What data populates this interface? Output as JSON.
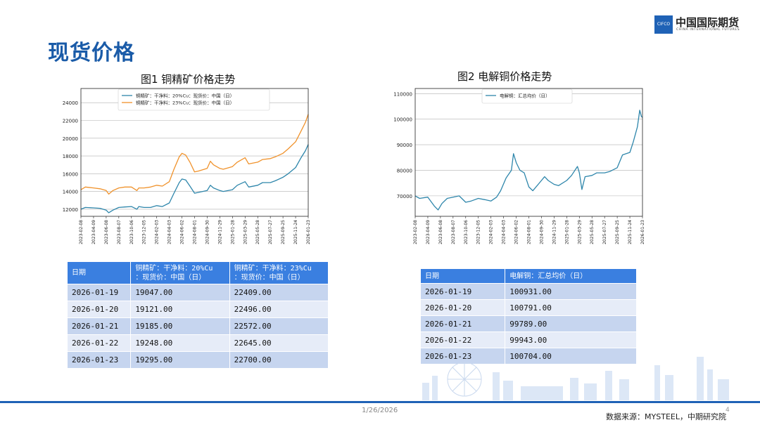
{
  "page": {
    "title": "现货价格",
    "date": "1/26/2026",
    "source": "数据来源：MYSTEEL，中期研究院",
    "page_number": "4"
  },
  "logo": {
    "mark": "CIFCO",
    "cn": "中国国际期货",
    "en": "CHINA INTERNATIONAL FUTURES"
  },
  "colors": {
    "accent": "#1f62b6",
    "table_header": "#3a7fe0",
    "series_blue": "#2e86ab",
    "series_orange": "#f0922b"
  },
  "chart_data": [
    {
      "type": "line",
      "title": "图1   铜精矿价格走势",
      "x_ticks": [
        "2023-02-08",
        "2023-04-09",
        "2023-06-08",
        "2023-08-07",
        "2023-10-06",
        "2023-12-05",
        "2024-02-03",
        "2024-04-03",
        "2024-06-02",
        "2024-08-01",
        "2024-09-30",
        "2024-11-29",
        "2025-01-28",
        "2025-03-29",
        "2025-05-28",
        "2025-07-27",
        "2025-09-25",
        "2025-11-24",
        "2026-01-23"
      ],
      "y_ticks": [
        12000,
        14000,
        16000,
        18000,
        20000,
        22000,
        24000
      ],
      "ylim": [
        11200,
        25600
      ],
      "grid": "horizontal",
      "legend_position": "top-center",
      "series": [
        {
          "name": "铜精矿：干净料：20%Cu：现货价：中国（日）",
          "color": "#2e86ab",
          "points": [
            [
              "2023-02-08",
              12000
            ],
            [
              "2023-03-01",
              12200
            ],
            [
              "2023-04-09",
              12150
            ],
            [
              "2023-05-10",
              12100
            ],
            [
              "2023-06-08",
              11900
            ],
            [
              "2023-06-20",
              11600
            ],
            [
              "2023-07-10",
              11900
            ],
            [
              "2023-08-07",
              12200
            ],
            [
              "2023-09-05",
              12250
            ],
            [
              "2023-10-06",
              12300
            ],
            [
              "2023-11-01",
              12000
            ],
            [
              "2023-11-10",
              12300
            ],
            [
              "2023-12-05",
              12200
            ],
            [
              "2024-01-05",
              12200
            ],
            [
              "2024-02-03",
              12400
            ],
            [
              "2024-03-01",
              12300
            ],
            [
              "2024-04-03",
              12700
            ],
            [
              "2024-04-25",
              13800
            ],
            [
              "2024-05-20",
              15000
            ],
            [
              "2024-06-02",
              15400
            ],
            [
              "2024-06-20",
              15300
            ],
            [
              "2024-07-10",
              14600
            ],
            [
              "2024-08-01",
              13800
            ],
            [
              "2024-08-20",
              13900
            ],
            [
              "2024-09-30",
              14100
            ],
            [
              "2024-10-15",
              14700
            ],
            [
              "2024-10-30",
              14400
            ],
            [
              "2024-11-29",
              14100
            ],
            [
              "2024-12-15",
              14000
            ],
            [
              "2025-01-28",
              14200
            ],
            [
              "2025-02-20",
              14700
            ],
            [
              "2025-03-29",
              15100
            ],
            [
              "2025-04-15",
              14500
            ],
            [
              "2025-05-28",
              14700
            ],
            [
              "2025-06-20",
              15000
            ],
            [
              "2025-07-27",
              15000
            ],
            [
              "2025-08-20",
              15200
            ],
            [
              "2025-09-25",
              15600
            ],
            [
              "2025-10-20",
              16000
            ],
            [
              "2025-11-24",
              16700
            ],
            [
              "2025-12-20",
              17800
            ],
            [
              "2026-01-10",
              18600
            ],
            [
              "2026-01-23",
              19295
            ]
          ]
        },
        {
          "name": "铜精矿：干净料：23%Cu：现货价：中国（日）",
          "color": "#f0922b",
          "points": [
            [
              "2023-02-08",
              14200
            ],
            [
              "2023-03-01",
              14500
            ],
            [
              "2023-04-09",
              14400
            ],
            [
              "2023-05-10",
              14300
            ],
            [
              "2023-06-08",
              14100
            ],
            [
              "2023-06-20",
              13700
            ],
            [
              "2023-07-10",
              14100
            ],
            [
              "2023-08-07",
              14400
            ],
            [
              "2023-09-05",
              14500
            ],
            [
              "2023-10-06",
              14500
            ],
            [
              "2023-11-01",
              14100
            ],
            [
              "2023-11-10",
              14400
            ],
            [
              "2023-12-05",
              14400
            ],
            [
              "2024-01-05",
              14500
            ],
            [
              "2024-02-03",
              14700
            ],
            [
              "2024-03-01",
              14600
            ],
            [
              "2024-04-03",
              15100
            ],
            [
              "2024-04-25",
              16500
            ],
            [
              "2024-05-20",
              17900
            ],
            [
              "2024-06-02",
              18300
            ],
            [
              "2024-06-20",
              18100
            ],
            [
              "2024-07-10",
              17300
            ],
            [
              "2024-08-01",
              16200
            ],
            [
              "2024-08-20",
              16300
            ],
            [
              "2024-09-30",
              16600
            ],
            [
              "2024-10-15",
              17400
            ],
            [
              "2024-10-30",
              17000
            ],
            [
              "2024-11-29",
              16600
            ],
            [
              "2024-12-15",
              16500
            ],
            [
              "2025-01-28",
              16800
            ],
            [
              "2025-02-20",
              17300
            ],
            [
              "2025-03-29",
              17800
            ],
            [
              "2025-04-15",
              17100
            ],
            [
              "2025-05-28",
              17300
            ],
            [
              "2025-06-20",
              17600
            ],
            [
              "2025-07-27",
              17700
            ],
            [
              "2025-08-20",
              17900
            ],
            [
              "2025-09-25",
              18300
            ],
            [
              "2025-10-20",
              18800
            ],
            [
              "2025-11-24",
              19600
            ],
            [
              "2025-12-20",
              20800
            ],
            [
              "2026-01-10",
              21800
            ],
            [
              "2026-01-23",
              22700
            ]
          ]
        }
      ]
    },
    {
      "type": "line",
      "title": "图2   电解铜价格走势",
      "x_ticks": [
        "2023-02-08",
        "2023-04-09",
        "2023-06-08",
        "2023-08-07",
        "2023-10-06",
        "2023-12-05",
        "2024-02-03",
        "2024-04-03",
        "2024-06-02",
        "2024-08-01",
        "2024-09-30",
        "2024-11-29",
        "2025-01-28",
        "2025-03-29",
        "2025-05-28",
        "2025-07-27",
        "2025-09-25",
        "2025-11-24",
        "2026-01-23"
      ],
      "y_ticks": [
        70000,
        80000,
        90000,
        100000,
        110000
      ],
      "ylim": [
        62000,
        112000
      ],
      "grid": "horizontal",
      "legend_position": "top-center",
      "series": [
        {
          "name": "电解铜：汇总均价（日）",
          "color": "#2e86ab",
          "points": [
            [
              "2023-02-08",
              70000
            ],
            [
              "2023-03-01",
              69000
            ],
            [
              "2023-04-09",
              69500
            ],
            [
              "2023-05-10",
              66000
            ],
            [
              "2023-05-28",
              64500
            ],
            [
              "2023-06-15",
              67000
            ],
            [
              "2023-07-10",
              69000
            ],
            [
              "2023-08-07",
              69500
            ],
            [
              "2023-09-05",
              70000
            ],
            [
              "2023-10-06",
              67500
            ],
            [
              "2023-11-01",
              68000
            ],
            [
              "2023-12-05",
              69000
            ],
            [
              "2024-01-05",
              68500
            ],
            [
              "2024-02-03",
              68000
            ],
            [
              "2024-03-01",
              69500
            ],
            [
              "2024-03-20",
              72000
            ],
            [
              "2024-04-15",
              77000
            ],
            [
              "2024-05-10",
              80000
            ],
            [
              "2024-05-20",
              86500
            ],
            [
              "2024-06-02",
              83000
            ],
            [
              "2024-06-20",
              80000
            ],
            [
              "2024-07-10",
              79000
            ],
            [
              "2024-08-01",
              73500
            ],
            [
              "2024-08-20",
              72000
            ],
            [
              "2024-09-30",
              76000
            ],
            [
              "2024-10-15",
              77500
            ],
            [
              "2024-11-01",
              76000
            ],
            [
              "2024-11-29",
              74500
            ],
            [
              "2024-12-20",
              74000
            ],
            [
              "2025-01-28",
              76000
            ],
            [
              "2025-02-20",
              78000
            ],
            [
              "2025-03-20",
              81500
            ],
            [
              "2025-03-29",
              79000
            ],
            [
              "2025-04-10",
              72500
            ],
            [
              "2025-04-25",
              77500
            ],
            [
              "2025-05-28",
              78000
            ],
            [
              "2025-06-20",
              79000
            ],
            [
              "2025-07-27",
              79000
            ],
            [
              "2025-08-20",
              79500
            ],
            [
              "2025-09-25",
              81000
            ],
            [
              "2025-10-20",
              86000
            ],
            [
              "2025-11-24",
              87000
            ],
            [
              "2025-12-10",
              91000
            ],
            [
              "2025-12-30",
              97000
            ],
            [
              "2026-01-10",
              103500
            ],
            [
              "2026-01-18",
              101000
            ],
            [
              "2026-01-23",
              100704
            ]
          ]
        }
      ]
    }
  ],
  "table1": {
    "headers": [
      [
        "日期"
      ],
      [
        "铜精矿：干净料：20%Cu",
        "：现货价：中国（日）"
      ],
      [
        "铜精矿：干净料：23%Cu",
        "：现货价：中国（日）"
      ]
    ],
    "rows": [
      [
        "2026-01-19",
        "19047.00",
        "22409.00"
      ],
      [
        "2026-01-20",
        "19121.00",
        "22496.00"
      ],
      [
        "2026-01-21",
        "19185.00",
        "22572.00"
      ],
      [
        "2026-01-22",
        "19248.00",
        "22645.00"
      ],
      [
        "2026-01-23",
        "19295.00",
        "22700.00"
      ]
    ]
  },
  "table2": {
    "headers": [
      [
        "日期"
      ],
      [
        "电解铜：汇总均价（日）"
      ]
    ],
    "rows": [
      [
        "2026-01-19",
        "100931.00"
      ],
      [
        "2026-01-20",
        "100791.00"
      ],
      [
        "2026-01-21",
        "99789.00"
      ],
      [
        "2026-01-22",
        "99943.00"
      ],
      [
        "2026-01-23",
        "100704.00"
      ]
    ]
  }
}
